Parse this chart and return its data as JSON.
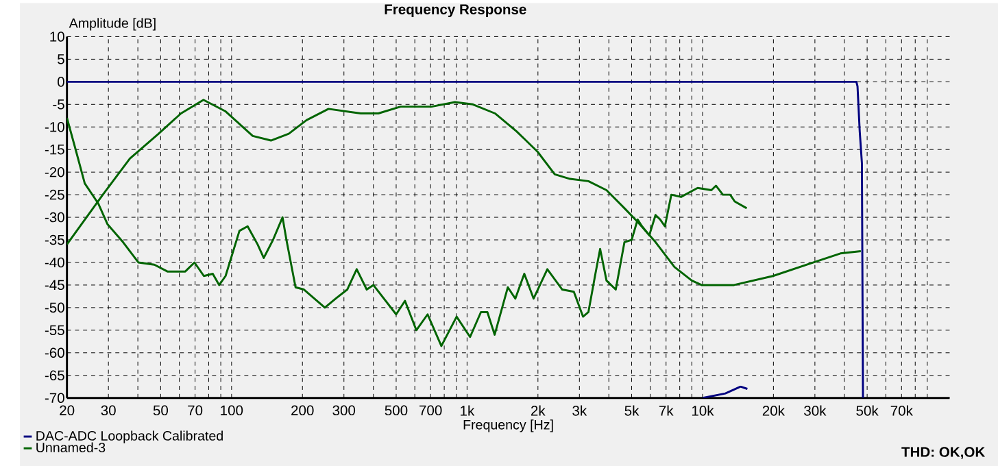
{
  "chart_data": {
    "type": "line",
    "title": "Frequency Response",
    "xlabel": "Frequency [Hz]",
    "ylabel": "Amplitude [dB]",
    "log": "x",
    "xlim": [
      20,
      112000
    ],
    "ylim": [
      -70,
      10
    ],
    "xticks": [
      20,
      30,
      {
        "value": 40,
        "label": null
      },
      50,
      {
        "value": 60,
        "label": null
      },
      70,
      {
        "value": 80,
        "label": null
      },
      {
        "value": 90,
        "label": null
      },
      100,
      200,
      300,
      {
        "value": 400,
        "label": null
      },
      500,
      {
        "value": 600,
        "label": null
      },
      700,
      {
        "value": 800,
        "label": null
      },
      {
        "value": 900,
        "label": null
      },
      {
        "value": 1000,
        "label": "1k"
      },
      {
        "value": 2000,
        "label": "2k"
      },
      {
        "value": 3000,
        "label": "3k"
      },
      {
        "value": 4000,
        "label": null
      },
      {
        "value": 5000,
        "label": "5k"
      },
      {
        "value": 6000,
        "label": null
      },
      {
        "value": 7000,
        "label": "7k"
      },
      {
        "value": 8000,
        "label": null
      },
      {
        "value": 9000,
        "label": null
      },
      {
        "value": 10000,
        "label": "10k"
      },
      {
        "value": 20000,
        "label": "20k"
      },
      {
        "value": 30000,
        "label": "30k"
      },
      {
        "value": 40000,
        "label": null
      },
      {
        "value": 50000,
        "label": "50k"
      },
      {
        "value": 60000,
        "label": null
      },
      {
        "value": 70000,
        "label": "70k"
      },
      {
        "value": 80000,
        "label": null
      },
      {
        "value": 90000,
        "label": null
      }
    ],
    "yticks": [
      -70,
      -65,
      -60,
      -55,
      -50,
      -45,
      -40,
      -35,
      -30,
      -25,
      -20,
      -15,
      -10,
      -5,
      0,
      5,
      10
    ],
    "grid": true,
    "legend": "bottom left",
    "marker": "none",
    "line_style": "solid",
    "annotations": [
      "THD: OK,OK"
    ],
    "series": [
      {
        "name": "DAC-ADC Loopback Calibrated",
        "color": "#000080",
        "x": [
          20,
          45000,
          45500,
          46500,
          47500,
          48000
        ],
        "values": [
          0,
          0,
          -1,
          -11,
          -18,
          -70
        ]
      },
      {
        "name": "Unnamed-3",
        "color": "#006400",
        "x": [
          20,
          28.4,
          37,
          49,
          61,
          76,
          94,
          123,
          147,
          175,
          208,
          258,
          354,
          420,
          522,
          707,
          888,
          1058,
          1314,
          1625,
          1994,
          2357,
          2738,
          3276,
          3910,
          4660,
          5300,
          6315,
          7600,
          9000,
          9900,
          13600,
          19900,
          29600,
          38500,
          47000
        ],
        "values": [
          -36,
          -25,
          -17,
          -11.5,
          -7,
          -4,
          -6.5,
          -12,
          -13,
          -11.5,
          -8.5,
          -6,
          -7,
          -7,
          -5.5,
          -5.5,
          -4.5,
          -5,
          -7,
          -11,
          -15.5,
          -20.5,
          -21.5,
          -22,
          -24,
          -28,
          -31,
          -35.5,
          -41,
          -44,
          -45,
          -45,
          -43,
          -40,
          -38,
          -37.5
        ]
      },
      {
        "color": "#006400",
        "x": [
          20,
          21.9,
          23.8,
          27.2,
          29.7,
          34.6,
          40.2,
          47,
          53.4,
          63.6,
          69.6,
          76.3,
          83.2,
          88.6,
          94.3,
          108,
          117,
          129,
          137,
          150,
          164.6,
          171,
          187,
          203,
          249,
          277,
          310,
          340,
          375,
          400,
          500,
          545,
          609,
          680,
          778,
          903,
          1030,
          1145,
          1220,
          1310,
          1490,
          1603,
          1750,
          1917,
          2192,
          2537,
          2841,
          3108,
          3276,
          3508,
          3674,
          3910,
          4280,
          4660,
          5000,
          5300,
          5535,
          5940,
          6315,
          6610,
          6920,
          7370,
          8100,
          9530,
          10900,
          11400,
          12200,
          13100,
          13700,
          15400
        ],
        "values": [
          -8,
          -15.5,
          -22.5,
          -27,
          -31.5,
          -35.5,
          -40,
          -40.5,
          -42,
          -42,
          -40,
          -43,
          -42.5,
          -45,
          -43,
          -33,
          -32,
          -36,
          -39,
          -35,
          -30,
          -35,
          -45.5,
          -46,
          -50,
          -48,
          -46,
          -41.5,
          -46,
          -45,
          -51.5,
          -48.5,
          -55,
          -51.5,
          -58.5,
          -52,
          -56.5,
          -51,
          -51,
          -56,
          -45.5,
          -48,
          -42.5,
          -48,
          -41.5,
          -46,
          -46.5,
          -52,
          -51,
          -42.5,
          -37,
          -44,
          -46,
          -35.5,
          -35,
          -30.5,
          -32,
          -34,
          -29.5,
          -30.5,
          -32,
          -25,
          -25.5,
          -23.5,
          -24,
          -23,
          -25,
          -25,
          -26.5,
          -28
        ]
      },
      {
        "color": "#000080",
        "x": [
          10000,
          12500,
          14500,
          15500
        ],
        "values": [
          -70,
          -69,
          -67.5,
          -68
        ]
      }
    ]
  }
}
